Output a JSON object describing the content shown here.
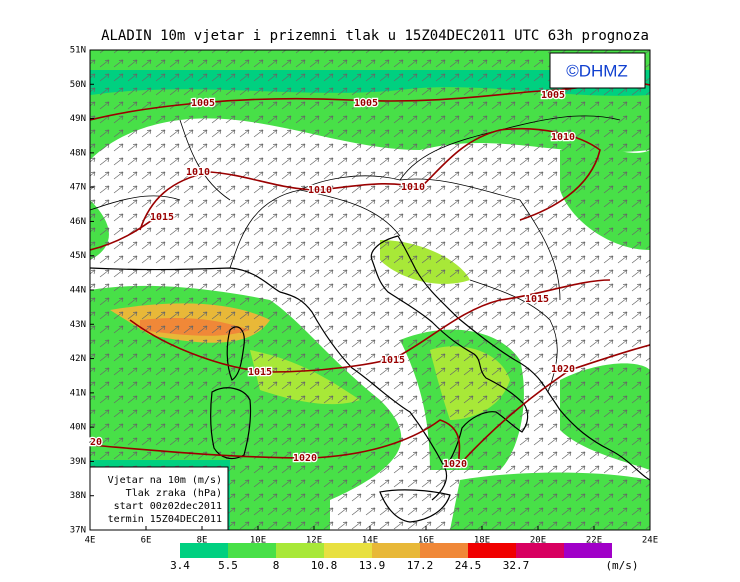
{
  "header": {
    "title": "ALADIN 10m vjetar i prizemni tlak u 15Z04DEC2011 UTC 63h prognoza",
    "copyright": "©DHMZ"
  },
  "map": {
    "lat_labels": [
      "37N",
      "38N",
      "39N",
      "40N",
      "41N",
      "42N",
      "43N",
      "44N",
      "45N",
      "46N",
      "47N",
      "48N",
      "49N",
      "50N",
      "51N"
    ],
    "lon_labels": [
      "4E",
      "6E",
      "8E",
      "10E",
      "12E",
      "14E",
      "16E",
      "18E",
      "20E",
      "22E",
      "24E"
    ],
    "isobar_labels": [
      "1005",
      "1005",
      "1005",
      "1010",
      "1010",
      "1010",
      "1010",
      "1015",
      "1015",
      "1015",
      "1015",
      "1020",
      "1020",
      "1020",
      "20"
    ]
  },
  "legend": {
    "lines": [
      "Vjetar na 10m (m/s)",
      "Tlak zraka (hPa)",
      "start 00z02dec2011",
      "termin 15Z04DEC2011"
    ]
  },
  "colorbar": {
    "colors": [
      "#00d080",
      "#48e048",
      "#a8e838",
      "#e8e040",
      "#e8b838",
      "#f08838",
      "#f00000",
      "#d80060",
      "#a000c8"
    ],
    "labels": [
      "3.4",
      "5.5",
      "8",
      "10.8",
      "13.9",
      "17.2",
      "24.5",
      "32.7"
    ],
    "unit": "(m/s)"
  }
}
